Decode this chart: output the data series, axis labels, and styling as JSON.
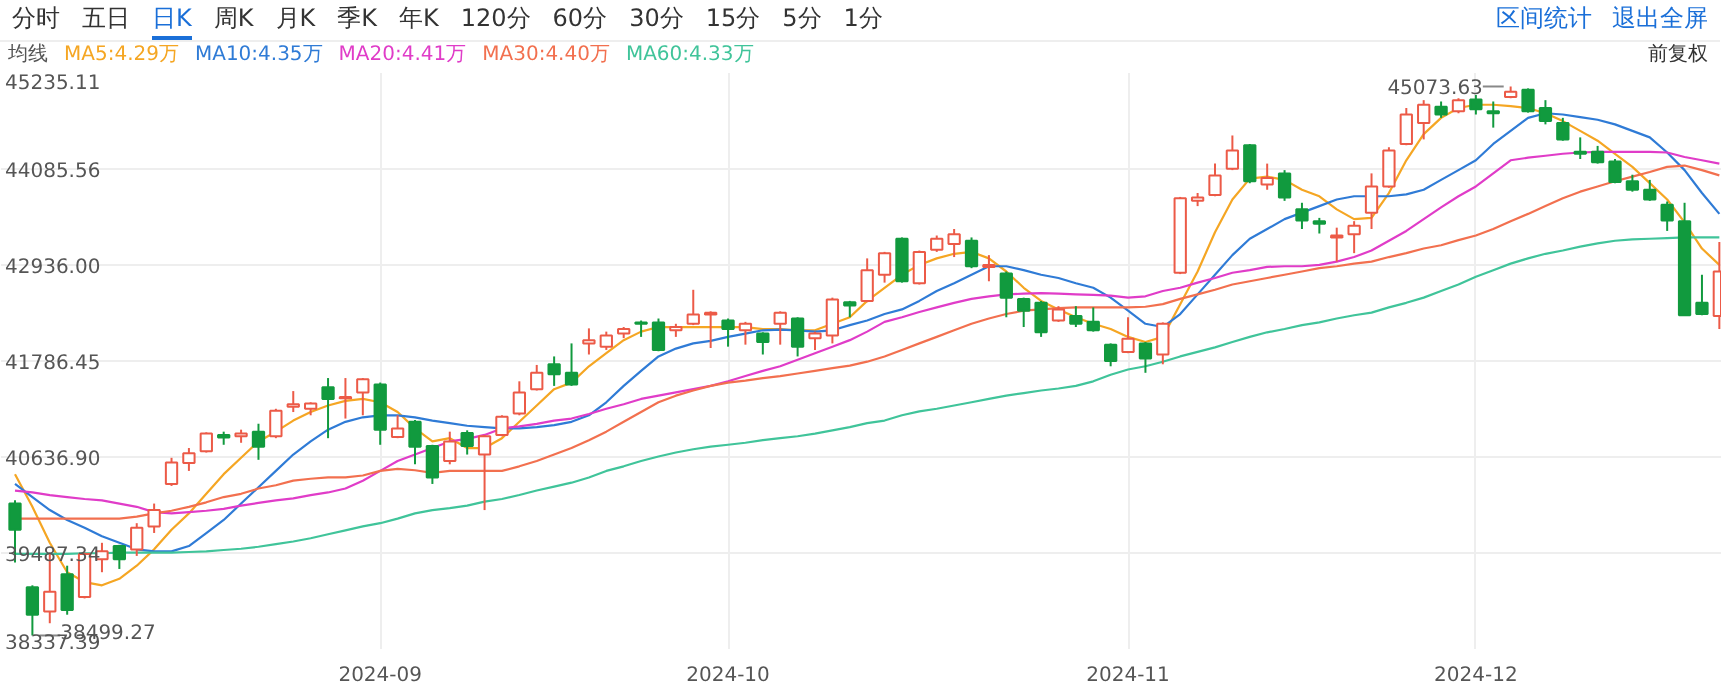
{
  "chart_data": {
    "type": "candlestick",
    "categories": [
      null,
      null,
      null,
      null,
      null,
      null,
      null,
      null,
      null,
      null,
      null,
      null,
      null,
      null,
      null,
      null,
      null,
      null,
      null,
      null,
      null,
      "2024-09",
      null,
      null,
      null,
      null,
      null,
      null,
      null,
      null,
      null,
      null,
      null,
      null,
      null,
      null,
      null,
      null,
      null,
      null,
      null,
      "2024-10",
      null,
      null,
      null,
      null,
      null,
      null,
      null,
      null,
      null,
      null,
      null,
      null,
      null,
      null,
      null,
      null,
      null,
      null,
      null,
      null,
      null,
      null,
      "2024-11",
      null,
      null,
      null,
      null,
      null,
      null,
      null,
      null,
      null,
      null,
      null,
      null,
      null,
      null,
      null,
      null,
      null,
      null,
      null,
      "2024-12",
      null,
      null,
      null,
      null,
      null,
      null,
      null,
      null,
      null,
      null,
      null,
      null,
      null,
      null
    ],
    "ohlc": [
      [
        40079,
        40118,
        39374,
        39766
      ],
      [
        39077,
        39100,
        38499.27,
        38748
      ],
      [
        38787,
        39491,
        38646,
        39022
      ],
      [
        39233,
        39335,
        38748,
        38803
      ],
      [
        38959,
        39491,
        38943,
        39476
      ],
      [
        39413,
        39609,
        39257,
        39507
      ],
      [
        39570,
        39585,
        39296,
        39413
      ],
      [
        39530,
        39844,
        39452,
        39789
      ],
      [
        39805,
        40079,
        39727,
        40001
      ],
      [
        40314,
        40627,
        40290,
        40572
      ],
      [
        40564,
        40744,
        40470,
        40682
      ],
      [
        40705,
        40932,
        40690,
        40917
      ],
      [
        40901,
        40940,
        40783,
        40870
      ],
      [
        40885,
        40964,
        40807,
        40917
      ],
      [
        40940,
        41035,
        40603,
        40760
      ],
      [
        40885,
        41214,
        40862,
        41191
      ],
      [
        41238,
        41426,
        41175,
        41269
      ],
      [
        41214,
        41292,
        41136,
        41277
      ],
      [
        41473,
        41582,
        40862,
        41332
      ],
      [
        41339,
        41582,
        41097,
        41355
      ],
      [
        41410,
        41582,
        41136,
        41567
      ],
      [
        41504,
        41528,
        40783,
        40964
      ],
      [
        40877,
        41136,
        40862,
        40979
      ],
      [
        41058,
        41081,
        40549,
        40760
      ],
      [
        40768,
        40783,
        40314,
        40392
      ],
      [
        40588,
        40940,
        40549,
        40823
      ],
      [
        40924,
        40956,
        40666,
        40768
      ],
      [
        40666,
        40901,
        40001,
        40885
      ],
      [
        40901,
        41136,
        40885,
        41120
      ],
      [
        41159,
        41543,
        41136,
        41410
      ],
      [
        41449,
        41739,
        41433,
        41645
      ],
      [
        41747,
        41841,
        41488,
        41629
      ],
      [
        41645,
        41997,
        41488,
        41504
      ],
      [
        41997,
        42177,
        41864,
        42036
      ],
      [
        41958,
        42138,
        41919,
        42091
      ],
      [
        42115,
        42193,
        42060,
        42169
      ],
      [
        42248,
        42271,
        42075,
        42232
      ],
      [
        42248,
        42295,
        41903,
        41919
      ],
      [
        42154,
        42232,
        42075,
        42193
      ],
      [
        42232,
        42639,
        42216,
        42342
      ],
      [
        42342,
        42381,
        41942,
        42365
      ],
      [
        42271,
        42295,
        41958,
        42169
      ],
      [
        42154,
        42255,
        41982,
        42232
      ],
      [
        42115,
        42130,
        41864,
        42013
      ],
      [
        42232,
        42381,
        41982,
        42365
      ],
      [
        42295,
        42310,
        41841,
        41958
      ],
      [
        42060,
        42138,
        41919,
        42115
      ],
      [
        42091,
        42545,
        41997,
        42522
      ],
      [
        42490,
        42506,
        42310,
        42451
      ],
      [
        42506,
        43015,
        42490,
        42874
      ],
      [
        42819,
        43093,
        42725,
        43077
      ],
      [
        43250,
        43266,
        42725,
        42741
      ],
      [
        42717,
        43109,
        42702,
        43093
      ],
      [
        43117,
        43289,
        43093,
        43250
      ],
      [
        43187,
        43367,
        43031,
        43305
      ],
      [
        43226,
        43266,
        42898,
        42921
      ],
      [
        42913,
        43054,
        42741,
        42937
      ],
      [
        42835,
        42858,
        42310,
        42545
      ],
      [
        42530,
        42545,
        42193,
        42389
      ],
      [
        42483,
        42506,
        42075,
        42130
      ],
      [
        42271,
        42443,
        42255,
        42404
      ],
      [
        42326,
        42443,
        42193,
        42232
      ],
      [
        42255,
        42428,
        42138,
        42154
      ],
      [
        41982,
        41997,
        41723,
        41786
      ],
      [
        41895,
        42310,
        41880,
        42052
      ],
      [
        41997,
        42013,
        41645,
        41817
      ],
      [
        41864,
        42248,
        41747,
        42232
      ],
      [
        42843,
        43751,
        42827,
        43735
      ],
      [
        43704,
        43798,
        43641,
        43743
      ],
      [
        43775,
        44150,
        43759,
        44009
      ],
      [
        44088,
        44487,
        44072,
        44307
      ],
      [
        44370,
        44385,
        43915,
        43939
      ],
      [
        43900,
        44150,
        43837,
        43978
      ],
      [
        44033,
        44072,
        43704,
        43743
      ],
      [
        43602,
        43681,
        43367,
        43469
      ],
      [
        43461,
        43500,
        43313,
        43430
      ],
      [
        43266,
        43383,
        42976,
        43289
      ],
      [
        43305,
        43461,
        43078,
        43407
      ],
      [
        43563,
        44033,
        43367,
        43876
      ],
      [
        43876,
        44346,
        43861,
        44307
      ],
      [
        44385,
        44816,
        44370,
        44738
      ],
      [
        44636,
        44910,
        44440,
        44855
      ],
      [
        44832,
        44894,
        44698,
        44738
      ],
      [
        44777,
        44933,
        44753,
        44910
      ],
      [
        44918,
        44972,
        44738,
        44800
      ],
      [
        44777,
        44894,
        44581,
        44753
      ],
      [
        44949,
        45073.63,
        44933,
        45012
      ],
      [
        45035,
        45051,
        44761,
        44777
      ],
      [
        44816,
        44910,
        44620,
        44659
      ],
      [
        44636,
        44698,
        44424,
        44440
      ],
      [
        44291,
        44464,
        44205,
        44268
      ],
      [
        44291,
        44362,
        44150,
        44166
      ],
      [
        44174,
        44205,
        43915,
        43931
      ],
      [
        43939,
        44017,
        43814,
        43837
      ],
      [
        43837,
        43955,
        43704,
        43720
      ],
      [
        43657,
        43696,
        43344,
        43469
      ],
      [
        43461,
        43681,
        42326,
        42334
      ],
      [
        42483,
        42819,
        42334,
        42349
      ],
      [
        42326,
        43211,
        42169,
        42858
      ]
    ],
    "colors": [
      "#119a3e",
      "#119a3e",
      "#ec5a47",
      "#119a3e",
      "#ec5a47",
      "#ec5a47",
      "#119a3e",
      "#ec5a47",
      "#ec5a47",
      "#ec5a47",
      "#ec5a47",
      "#ec5a47",
      "#119a3e",
      "#ec5a47",
      "#119a3e",
      "#ec5a47",
      "#ec5a47",
      "#ec5a47",
      "#119a3e",
      "#ec5a47",
      "#ec5a47",
      "#119a3e",
      "#ec5a47",
      "#119a3e",
      "#119a3e",
      "#ec5a47",
      "#119a3e",
      "#ec5a47",
      "#ec5a47",
      "#ec5a47",
      "#ec5a47",
      "#119a3e",
      "#119a3e",
      "#ec5a47",
      "#ec5a47",
      "#ec5a47",
      "#119a3e",
      "#119a3e",
      "#ec5a47",
      "#ec5a47",
      "#ec5a47",
      "#119a3e",
      "#ec5a47",
      "#119a3e",
      "#ec5a47",
      "#119a3e",
      "#ec5a47",
      "#ec5a47",
      "#119a3e",
      "#ec5a47",
      "#ec5a47",
      "#119a3e",
      "#ec5a47",
      "#ec5a47",
      "#ec5a47",
      "#119a3e",
      "#ec5a47",
      "#119a3e",
      "#119a3e",
      "#119a3e",
      "#ec5a47",
      "#119a3e",
      "#119a3e",
      "#119a3e",
      "#ec5a47",
      "#119a3e",
      "#ec5a47",
      "#ec5a47",
      "#ec5a47",
      "#ec5a47",
      "#ec5a47",
      "#119a3e",
      "#ec5a47",
      "#119a3e",
      "#119a3e",
      "#119a3e",
      "#ec5a47",
      "#ec5a47",
      "#ec5a47",
      "#ec5a47",
      "#ec5a47",
      "#ec5a47",
      "#119a3e",
      "#ec5a47",
      "#119a3e",
      "#119a3e",
      "#ec5a47",
      "#119a3e",
      "#119a3e",
      "#119a3e",
      "#119a3e",
      "#119a3e",
      "#119a3e",
      "#119a3e",
      "#119a3e",
      "#119a3e",
      "#119a3e",
      "#119a3e",
      "#ec5a47"
    ],
    "series": [
      {
        "name": "MA5:4.29万",
        "type": "line",
        "color": "#f5a623",
        "values": [
          40431,
          40040,
          39609,
          39257,
          39139,
          39100,
          39178,
          39335,
          39531,
          39766,
          39961,
          40196,
          40431,
          40627,
          40823,
          40940,
          41073,
          41175,
          41253,
          41308,
          41332,
          41292,
          41175,
          40979,
          40823,
          40862,
          40744,
          40744,
          40862,
          41058,
          41253,
          41449,
          41527,
          41723,
          41880,
          42036,
          42138,
          42193,
          42193,
          42193,
          42193,
          42193,
          42193,
          42169,
          42169,
          42154,
          42154,
          42232,
          42310,
          42506,
          42663,
          42819,
          42937,
          43015,
          43070,
          43093,
          43015,
          42858,
          42663,
          42506,
          42404,
          42310,
          42232,
          42169,
          42075,
          42013,
          42075,
          42467,
          42858,
          43328,
          43720,
          43970,
          43994,
          43955,
          43837,
          43759,
          43602,
          43485,
          43501,
          43798,
          44190,
          44503,
          44698,
          44816,
          44855,
          44855,
          44839,
          44816,
          44753,
          44659,
          44542,
          44424,
          44268,
          44111,
          43916,
          43720,
          43446,
          43133,
          42937
        ]
      },
      {
        "name": "MA10:4.35万",
        "type": "line",
        "color": "#2f7bd6",
        "values": [
          40314,
          40157,
          40001,
          39883,
          39789,
          39687,
          39609,
          39531,
          39507,
          39507,
          39570,
          39726,
          39883,
          40079,
          40274,
          40470,
          40666,
          40823,
          40964,
          41058,
          41112,
          41136,
          41136,
          41112,
          41073,
          41042,
          41011,
          40995,
          40979,
          40979,
          40995,
          41018,
          41058,
          41136,
          41292,
          41488,
          41668,
          41841,
          41935,
          41997,
          42028,
          42075,
          42115,
          42154,
          42162,
          42154,
          42138,
          42154,
          42216,
          42271,
          42349,
          42404,
          42506,
          42624,
          42718,
          42819,
          42921,
          42921,
          42874,
          42819,
          42780,
          42718,
          42663,
          42545,
          42389,
          42232,
          42193,
          42349,
          42584,
          42819,
          43054,
          43250,
          43367,
          43485,
          43563,
          43641,
          43720,
          43759,
          43759,
          43759,
          43782,
          43837,
          43955,
          44072,
          44190,
          44385,
          44542,
          44698,
          44753,
          44738,
          44706,
          44675,
          44620,
          44542,
          44464,
          44283,
          44072,
          43798,
          43548
        ]
      },
      {
        "name": "MA20:4.41万",
        "type": "line",
        "color": "#e03cc8",
        "values": [
          40235,
          40212,
          40181,
          40157,
          40134,
          40118,
          40079,
          40040,
          39977,
          39961,
          39977,
          39993,
          40016,
          40055,
          40087,
          40118,
          40141,
          40181,
          40212,
          40259,
          40353,
          40470,
          40588,
          40666,
          40744,
          40823,
          40854,
          40901,
          40979,
          41003,
          41034,
          41073,
          41097,
          41152,
          41214,
          41269,
          41332,
          41371,
          41410,
          41449,
          41488,
          41543,
          41606,
          41668,
          41723,
          41801,
          41880,
          41958,
          42036,
          42138,
          42255,
          42310,
          42373,
          42428,
          42483,
          42530,
          42561,
          42584,
          42592,
          42600,
          42592,
          42584,
          42577,
          42569,
          42545,
          42561,
          42624,
          42663,
          42725,
          42780,
          42843,
          42874,
          42913,
          42921,
          42921,
          42937,
          42976,
          43031,
          43109,
          43226,
          43344,
          43485,
          43626,
          43759,
          43876,
          44033,
          44190,
          44221,
          44244,
          44268,
          44283,
          44291,
          44291,
          44291,
          44291,
          44283,
          44229,
          44190,
          44150
        ]
      },
      {
        "name": "MA30:4.40万",
        "type": "line",
        "color": "#f2704f",
        "values": [
          39899,
          39899,
          39899,
          39899,
          39899,
          39899,
          39899,
          39922,
          39961,
          39993,
          40040,
          40094,
          40157,
          40196,
          40259,
          40298,
          40353,
          40376,
          40392,
          40392,
          40415,
          40470,
          40494,
          40478,
          40447,
          40470,
          40470,
          40470,
          40470,
          40525,
          40588,
          40666,
          40744,
          40838,
          40940,
          41058,
          41175,
          41292,
          41371,
          41433,
          41488,
          41527,
          41551,
          41582,
          41606,
          41637,
          41668,
          41700,
          41731,
          41778,
          41841,
          41919,
          41997,
          42075,
          42154,
          42232,
          42295,
          42349,
          42389,
          42404,
          42420,
          42428,
          42428,
          42428,
          42428,
          42436,
          42467,
          42530,
          42584,
          42639,
          42702,
          42741,
          42780,
          42819,
          42858,
          42898,
          42921,
          42952,
          42976,
          43031,
          43078,
          43133,
          43172,
          43234,
          43289,
          43367,
          43461,
          43548,
          43641,
          43735,
          43814,
          43876,
          43939,
          43994,
          44049,
          44111,
          44127,
          44072,
          44009
        ]
      },
      {
        "name": "MA60:4.33万",
        "type": "line",
        "color": "#40c49a",
        "values": [
          39476,
          39476,
          39476,
          39476,
          39484,
          39484,
          39491,
          39491,
          39491,
          39491,
          39499,
          39507,
          39523,
          39538,
          39562,
          39593,
          39625,
          39664,
          39711,
          39758,
          39805,
          39844,
          39899,
          39961,
          40001,
          40024,
          40055,
          40102,
          40134,
          40181,
          40235,
          40282,
          40329,
          40392,
          40470,
          40525,
          40588,
          40643,
          40690,
          40729,
          40760,
          40783,
          40807,
          40838,
          40862,
          40885,
          40917,
          40956,
          40995,
          41042,
          41073,
          41136,
          41183,
          41214,
          41253,
          41292,
          41332,
          41371,
          41402,
          41433,
          41457,
          41488,
          41543,
          41621,
          41684,
          41723,
          41778,
          41841,
          41895,
          41950,
          42013,
          42075,
          42130,
          42169,
          42216,
          42248,
          42295,
          42334,
          42365,
          42428,
          42483,
          42545,
          42624,
          42702,
          42796,
          42874,
          42952,
          43015,
          43070,
          43109,
          43156,
          43195,
          43226,
          43242,
          43250,
          43258,
          43266,
          43266,
          43266
        ]
      }
    ],
    "ylim": [
      38337.39,
      45235.11
    ],
    "yticks": [
      38337.39,
      39487.34,
      {
        "value": 40636.9,
        "label": "40636.90"
      },
      41786.45,
      {
        "value": 42936,
        "label": "42936.00"
      },
      44085.56,
      45235.11
    ],
    "grid": true,
    "legend": "top left",
    "annotations": [
      "分时",
      "五日",
      "日K",
      "周K",
      "月K",
      "季K",
      "年K",
      "120分",
      "60分",
      "30分",
      "15分",
      "5分",
      "1分",
      "区间统计",
      "退出全屏",
      "均线",
      "前复权",
      "45073.63",
      "38499.27"
    ]
  }
}
